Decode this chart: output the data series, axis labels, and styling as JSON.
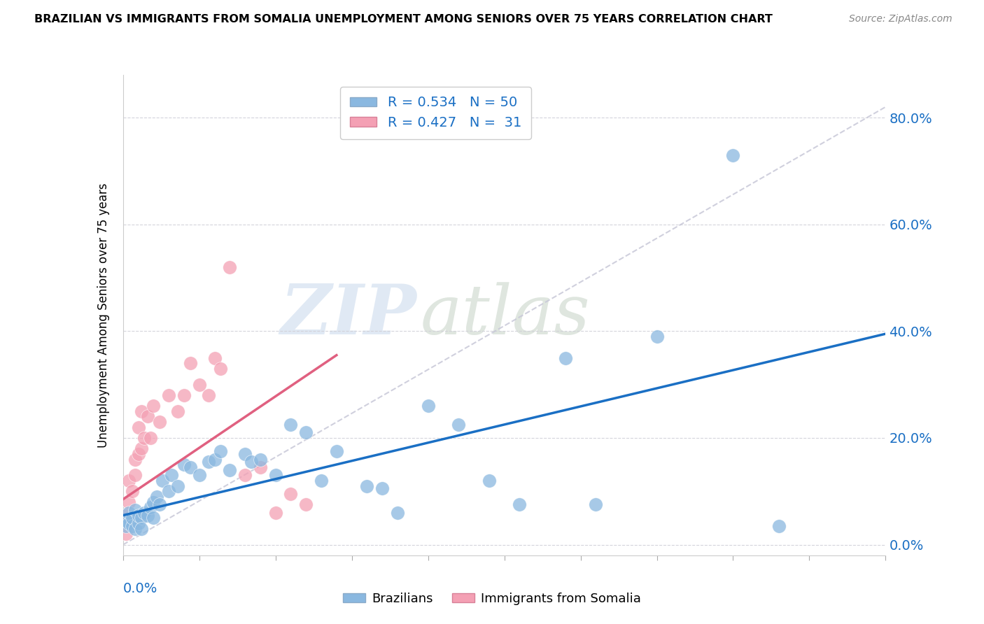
{
  "title": "BRAZILIAN VS IMMIGRANTS FROM SOMALIA UNEMPLOYMENT AMONG SENIORS OVER 75 YEARS CORRELATION CHART",
  "source": "Source: ZipAtlas.com",
  "ylabel": "Unemployment Among Seniors over 75 years",
  "ytick_labels": [
    "0.0%",
    "20.0%",
    "40.0%",
    "60.0%",
    "80.0%"
  ],
  "ytick_values": [
    0.0,
    0.2,
    0.4,
    0.6,
    0.8
  ],
  "xlim": [
    0.0,
    0.25
  ],
  "ylim": [
    -0.02,
    0.88
  ],
  "watermark_text": "ZIP",
  "watermark_text2": "atlas",
  "brazil_color": "#8ab8e0",
  "somalia_color": "#f4a0b4",
  "brazil_line_color": "#1a6fc4",
  "somalia_line_color": "#e06080",
  "ref_line_color": "#c8c8d8",
  "brazil_R": 0.534,
  "somalia_R": 0.427,
  "brazil_N": 50,
  "somalia_N": 31,
  "brazil_x": [
    0.001,
    0.001,
    0.002,
    0.002,
    0.003,
    0.003,
    0.004,
    0.004,
    0.005,
    0.005,
    0.006,
    0.006,
    0.007,
    0.008,
    0.009,
    0.01,
    0.01,
    0.011,
    0.012,
    0.013,
    0.015,
    0.016,
    0.018,
    0.02,
    0.022,
    0.025,
    0.028,
    0.03,
    0.032,
    0.035,
    0.04,
    0.042,
    0.045,
    0.05,
    0.055,
    0.06,
    0.065,
    0.07,
    0.08,
    0.085,
    0.09,
    0.1,
    0.11,
    0.12,
    0.13,
    0.145,
    0.155,
    0.175,
    0.2,
    0.215
  ],
  "brazil_y": [
    0.035,
    0.045,
    0.04,
    0.06,
    0.035,
    0.05,
    0.03,
    0.065,
    0.04,
    0.055,
    0.05,
    0.03,
    0.06,
    0.055,
    0.07,
    0.08,
    0.05,
    0.09,
    0.075,
    0.12,
    0.1,
    0.13,
    0.11,
    0.15,
    0.145,
    0.13,
    0.155,
    0.16,
    0.175,
    0.14,
    0.17,
    0.155,
    0.16,
    0.13,
    0.225,
    0.21,
    0.12,
    0.175,
    0.11,
    0.105,
    0.06,
    0.26,
    0.225,
    0.12,
    0.075,
    0.35,
    0.075,
    0.39,
    0.73,
    0.035
  ],
  "somalia_x": [
    0.001,
    0.001,
    0.002,
    0.002,
    0.003,
    0.003,
    0.004,
    0.004,
    0.005,
    0.005,
    0.006,
    0.006,
    0.007,
    0.008,
    0.009,
    0.01,
    0.012,
    0.015,
    0.018,
    0.02,
    0.022,
    0.025,
    0.028,
    0.03,
    0.032,
    0.035,
    0.04,
    0.045,
    0.05,
    0.055,
    0.06
  ],
  "somalia_y": [
    0.02,
    0.055,
    0.08,
    0.12,
    0.05,
    0.1,
    0.13,
    0.16,
    0.22,
    0.17,
    0.18,
    0.25,
    0.2,
    0.24,
    0.2,
    0.26,
    0.23,
    0.28,
    0.25,
    0.28,
    0.34,
    0.3,
    0.28,
    0.35,
    0.33,
    0.52,
    0.13,
    0.145,
    0.06,
    0.095,
    0.075
  ],
  "brazil_line_x": [
    0.0,
    0.25
  ],
  "brazil_line_y": [
    0.055,
    0.395
  ],
  "somalia_line_x": [
    0.0,
    0.07
  ],
  "somalia_line_y": [
    0.085,
    0.355
  ]
}
